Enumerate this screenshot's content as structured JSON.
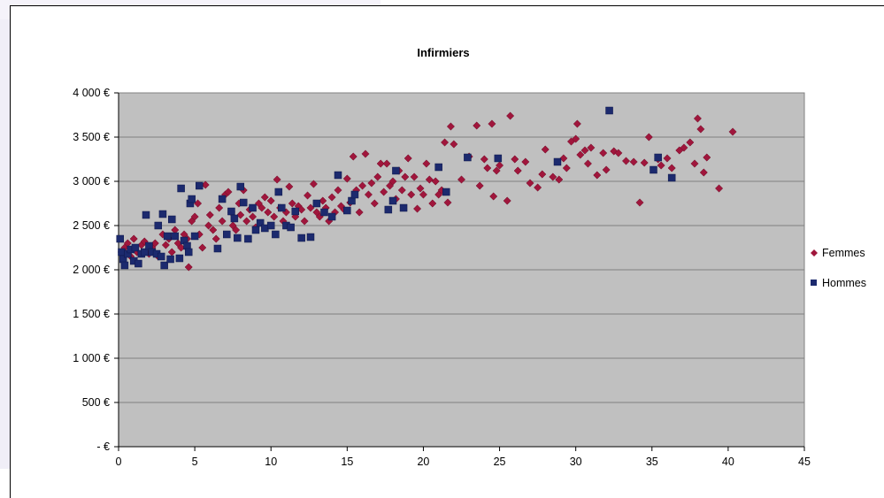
{
  "chart_data": {
    "type": "scatter",
    "title": "Infirmiers",
    "xlabel": "",
    "ylabel": "",
    "xlim": [
      0,
      45
    ],
    "ylim": [
      0,
      4000
    ],
    "x_ticks": [
      0,
      5,
      10,
      15,
      20,
      25,
      30,
      35,
      40,
      45
    ],
    "y_ticks": [
      {
        "value": 0,
        "label": "- €"
      },
      {
        "value": 500,
        "label": "500 €"
      },
      {
        "value": 1000,
        "label": "1 000 €"
      },
      {
        "value": 1500,
        "label": "1 500 €"
      },
      {
        "value": 2000,
        "label": "2 000 €"
      },
      {
        "value": 2500,
        "label": "2 500 €"
      },
      {
        "value": 3000,
        "label": "3 000 €"
      },
      {
        "value": 3500,
        "label": "3 500 €"
      },
      {
        "value": 4000,
        "label": "4 000 €"
      }
    ],
    "grid": "horizontal",
    "legend_position": "right",
    "colors": {
      "plot_background": "#c0c0c0",
      "gridline": "#808080",
      "femmes": "#a0163c",
      "hommes": "#1c2a6e"
    },
    "series": [
      {
        "name": "Femmes",
        "marker": "diamond",
        "points": [
          [
            0.2,
            2200
          ],
          [
            0.4,
            2250
          ],
          [
            0.6,
            2300
          ],
          [
            0.8,
            2150
          ],
          [
            1.0,
            2350
          ],
          [
            1.2,
            2200
          ],
          [
            1.5,
            2280
          ],
          [
            1.7,
            2320
          ],
          [
            2.0,
            2180
          ],
          [
            2.2,
            2250
          ],
          [
            2.4,
            2300
          ],
          [
            2.6,
            2150
          ],
          [
            2.9,
            2400
          ],
          [
            3.1,
            2280
          ],
          [
            3.3,
            2350
          ],
          [
            3.5,
            2200
          ],
          [
            3.7,
            2450
          ],
          [
            3.9,
            2300
          ],
          [
            4.1,
            2250
          ],
          [
            4.3,
            2400
          ],
          [
            4.5,
            2350
          ],
          [
            4.6,
            2030
          ],
          [
            4.8,
            2550
          ],
          [
            5.0,
            2600
          ],
          [
            5.2,
            2750
          ],
          [
            5.3,
            2400
          ],
          [
            5.5,
            2250
          ],
          [
            5.7,
            2960
          ],
          [
            5.9,
            2500
          ],
          [
            6.0,
            2620
          ],
          [
            6.2,
            2450
          ],
          [
            6.4,
            2350
          ],
          [
            6.6,
            2700
          ],
          [
            6.8,
            2550
          ],
          [
            7.0,
            2850
          ],
          [
            7.2,
            2880
          ],
          [
            7.4,
            2650
          ],
          [
            7.5,
            2500
          ],
          [
            7.7,
            2450
          ],
          [
            7.9,
            2750
          ],
          [
            8.0,
            2620
          ],
          [
            8.2,
            2900
          ],
          [
            8.4,
            2550
          ],
          [
            8.6,
            2680
          ],
          [
            8.8,
            2600
          ],
          [
            9.0,
            2480
          ],
          [
            9.2,
            2750
          ],
          [
            9.4,
            2700
          ],
          [
            9.6,
            2820
          ],
          [
            9.8,
            2650
          ],
          [
            10.0,
            2780
          ],
          [
            10.2,
            2600
          ],
          [
            10.4,
            3020
          ],
          [
            10.6,
            2700
          ],
          [
            10.8,
            2550
          ],
          [
            11.0,
            2650
          ],
          [
            11.2,
            2940
          ],
          [
            11.4,
            2750
          ],
          [
            11.6,
            2600
          ],
          [
            11.8,
            2720
          ],
          [
            12.0,
            2680
          ],
          [
            12.2,
            2550
          ],
          [
            12.4,
            2840
          ],
          [
            12.6,
            2700
          ],
          [
            12.8,
            2970
          ],
          [
            13.0,
            2650
          ],
          [
            13.2,
            2600
          ],
          [
            13.4,
            2780
          ],
          [
            13.6,
            2700
          ],
          [
            13.8,
            2550
          ],
          [
            14.0,
            2820
          ],
          [
            14.2,
            2650
          ],
          [
            14.4,
            2900
          ],
          [
            14.6,
            2720
          ],
          [
            14.8,
            2680
          ],
          [
            15.0,
            3030
          ],
          [
            15.2,
            2760
          ],
          [
            15.4,
            3280
          ],
          [
            15.6,
            2900
          ],
          [
            15.8,
            2650
          ],
          [
            16.0,
            2950
          ],
          [
            16.2,
            3310
          ],
          [
            16.4,
            2850
          ],
          [
            16.6,
            2980
          ],
          [
            16.8,
            2750
          ],
          [
            17.0,
            3050
          ],
          [
            17.2,
            3200
          ],
          [
            17.4,
            2880
          ],
          [
            17.6,
            3200
          ],
          [
            17.8,
            2950
          ],
          [
            18.0,
            3000
          ],
          [
            18.2,
            2800
          ],
          [
            18.4,
            3120
          ],
          [
            18.6,
            2900
          ],
          [
            18.8,
            3050
          ],
          [
            19.0,
            3260
          ],
          [
            19.2,
            2850
          ],
          [
            19.4,
            3050
          ],
          [
            19.6,
            2690
          ],
          [
            19.8,
            2920
          ],
          [
            20.0,
            2850
          ],
          [
            20.2,
            3200
          ],
          [
            20.4,
            3020
          ],
          [
            20.6,
            2750
          ],
          [
            20.8,
            3000
          ],
          [
            21.0,
            2850
          ],
          [
            21.2,
            2900
          ],
          [
            21.4,
            3440
          ],
          [
            21.6,
            2760
          ],
          [
            21.8,
            3620
          ],
          [
            22.0,
            3420
          ],
          [
            22.5,
            3020
          ],
          [
            23.0,
            3280
          ],
          [
            23.5,
            3630
          ],
          [
            23.7,
            2950
          ],
          [
            24.0,
            3250
          ],
          [
            24.2,
            3150
          ],
          [
            24.5,
            3650
          ],
          [
            24.6,
            2830
          ],
          [
            24.8,
            3120
          ],
          [
            25.0,
            3180
          ],
          [
            25.5,
            2780
          ],
          [
            25.7,
            3740
          ],
          [
            26.0,
            3250
          ],
          [
            26.2,
            3120
          ],
          [
            26.7,
            3220
          ],
          [
            27.0,
            2980
          ],
          [
            27.5,
            2930
          ],
          [
            27.8,
            3080
          ],
          [
            28.0,
            3360
          ],
          [
            28.5,
            3050
          ],
          [
            28.9,
            3020
          ],
          [
            29.2,
            3260
          ],
          [
            29.4,
            3150
          ],
          [
            29.7,
            3450
          ],
          [
            30.0,
            3480
          ],
          [
            30.1,
            3650
          ],
          [
            30.3,
            3300
          ],
          [
            30.6,
            3350
          ],
          [
            30.8,
            3200
          ],
          [
            31.0,
            3380
          ],
          [
            31.4,
            3070
          ],
          [
            31.8,
            3320
          ],
          [
            32.0,
            3130
          ],
          [
            32.5,
            3340
          ],
          [
            32.8,
            3320
          ],
          [
            33.3,
            3230
          ],
          [
            33.8,
            3220
          ],
          [
            34.2,
            2760
          ],
          [
            34.5,
            3210
          ],
          [
            34.8,
            3500
          ],
          [
            35.4,
            3250
          ],
          [
            35.6,
            3180
          ],
          [
            36.0,
            3260
          ],
          [
            36.3,
            3150
          ],
          [
            36.8,
            3350
          ],
          [
            37.1,
            3380
          ],
          [
            37.5,
            3440
          ],
          [
            37.8,
            3200
          ],
          [
            38.0,
            3710
          ],
          [
            38.2,
            3590
          ],
          [
            38.4,
            3100
          ],
          [
            38.6,
            3270
          ],
          [
            39.4,
            2920
          ],
          [
            40.3,
            3560
          ]
        ]
      },
      {
        "name": "Hommes",
        "marker": "square",
        "points": [
          [
            0.1,
            2350
          ],
          [
            0.2,
            2200
          ],
          [
            0.3,
            2120
          ],
          [
            0.4,
            2050
          ],
          [
            0.6,
            2180
          ],
          [
            0.8,
            2230
          ],
          [
            1.0,
            2100
          ],
          [
            1.1,
            2250
          ],
          [
            1.3,
            2070
          ],
          [
            1.5,
            2180
          ],
          [
            1.7,
            2200
          ],
          [
            1.8,
            2620
          ],
          [
            2.0,
            2270
          ],
          [
            2.2,
            2200
          ],
          [
            2.5,
            2180
          ],
          [
            2.6,
            2500
          ],
          [
            2.8,
            2150
          ],
          [
            2.9,
            2630
          ],
          [
            3.0,
            2050
          ],
          [
            3.2,
            2380
          ],
          [
            3.4,
            2120
          ],
          [
            3.5,
            2570
          ],
          [
            3.7,
            2380
          ],
          [
            4.0,
            2130
          ],
          [
            4.1,
            2920
          ],
          [
            4.3,
            2330
          ],
          [
            4.5,
            2270
          ],
          [
            4.6,
            2200
          ],
          [
            4.7,
            2750
          ],
          [
            4.8,
            2800
          ],
          [
            5.0,
            2380
          ],
          [
            5.3,
            2950
          ],
          [
            6.5,
            2240
          ],
          [
            6.8,
            2800
          ],
          [
            7.1,
            2400
          ],
          [
            7.4,
            2660
          ],
          [
            7.6,
            2580
          ],
          [
            7.8,
            2360
          ],
          [
            8.0,
            2940
          ],
          [
            8.2,
            2760
          ],
          [
            8.5,
            2350
          ],
          [
            8.8,
            2700
          ],
          [
            9.0,
            2450
          ],
          [
            9.3,
            2530
          ],
          [
            9.6,
            2470
          ],
          [
            10.0,
            2500
          ],
          [
            10.3,
            2400
          ],
          [
            10.5,
            2880
          ],
          [
            10.7,
            2700
          ],
          [
            11.0,
            2500
          ],
          [
            11.3,
            2480
          ],
          [
            11.6,
            2660
          ],
          [
            12.0,
            2360
          ],
          [
            12.6,
            2370
          ],
          [
            13.0,
            2750
          ],
          [
            13.5,
            2650
          ],
          [
            14.0,
            2600
          ],
          [
            14.4,
            3070
          ],
          [
            15.0,
            2670
          ],
          [
            15.3,
            2780
          ],
          [
            15.5,
            2850
          ],
          [
            17.7,
            2680
          ],
          [
            18.0,
            2780
          ],
          [
            18.2,
            3120
          ],
          [
            18.7,
            2700
          ],
          [
            21.0,
            3160
          ],
          [
            21.5,
            2880
          ],
          [
            22.9,
            3270
          ],
          [
            24.9,
            3260
          ],
          [
            28.8,
            3220
          ],
          [
            32.2,
            3800
          ],
          [
            35.1,
            3130
          ],
          [
            35.4,
            3270
          ],
          [
            36.3,
            3040
          ]
        ]
      }
    ]
  }
}
